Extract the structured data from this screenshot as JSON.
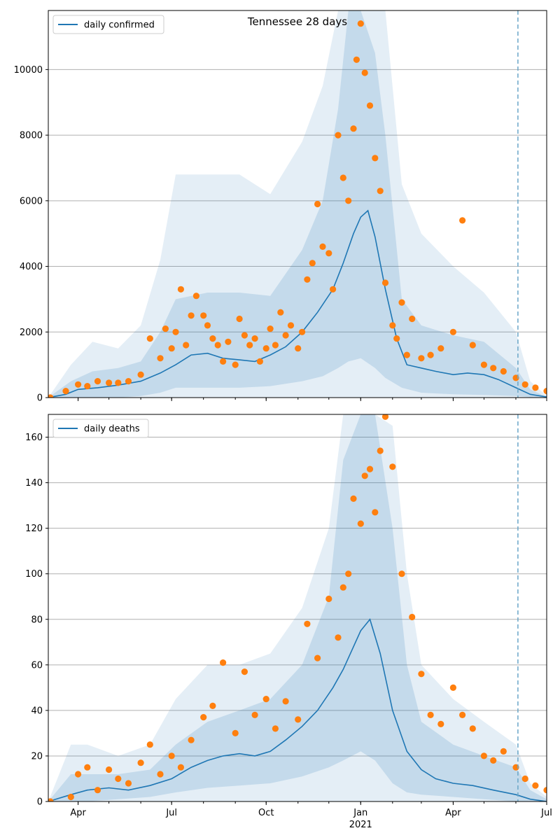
{
  "chart_data": [
    {
      "type": "line",
      "title": "Tennessee 28 days",
      "xlabel": "",
      "ylabel": "",
      "ylim": [
        0,
        11800
      ],
      "x_ticks": [
        "Apr",
        "Jul",
        "Oct",
        "Jan",
        "Apr",
        "Jul"
      ],
      "x_tick_dates": [
        "2020-04-01",
        "2020-07-01",
        "2020-10-01",
        "2021-01-01",
        "2021-04-01",
        "2021-07-01"
      ],
      "x_sub_label": "2021",
      "y_ticks": [
        0,
        2000,
        4000,
        6000,
        8000,
        10000
      ],
      "xlim": [
        "2020-03-03",
        "2021-07-01"
      ],
      "forecast_start": "2021-06-03",
      "grid": "horizontal",
      "legend": "upper-left",
      "colors": {
        "line": "#1f77b4",
        "points": "#ff7f0e",
        "band": "#1f77b4",
        "forecast_line": "#6aa6c8"
      },
      "series": [
        {
          "name": "daily confirmed",
          "kind": "line",
          "x": [
            "2020-03-03",
            "2020-03-20",
            "2020-04-01",
            "2020-04-20",
            "2020-05-10",
            "2020-06-01",
            "2020-06-20",
            "2020-07-05",
            "2020-07-20",
            "2020-08-05",
            "2020-08-20",
            "2020-09-05",
            "2020-09-20",
            "2020-10-05",
            "2020-10-20",
            "2020-11-05",
            "2020-11-20",
            "2020-12-05",
            "2020-12-15",
            "2020-12-25",
            "2021-01-01",
            "2021-01-08",
            "2021-01-15",
            "2021-01-25",
            "2021-02-05",
            "2021-02-15",
            "2021-03-01",
            "2021-03-15",
            "2021-04-01",
            "2021-04-15",
            "2021-05-01",
            "2021-05-15",
            "2021-06-01",
            "2021-06-15",
            "2021-07-01"
          ],
          "y": [
            0,
            100,
            250,
            300,
            380,
            500,
            750,
            1000,
            1300,
            1350,
            1200,
            1150,
            1100,
            1300,
            1550,
            2000,
            2600,
            3300,
            4100,
            5000,
            5500,
            5700,
            4900,
            3300,
            1800,
            1000,
            900,
            800,
            700,
            750,
            700,
            550,
            300,
            100,
            20
          ]
        },
        {
          "name": "uncertainty band (outer)",
          "kind": "band",
          "x": [
            "2020-03-03",
            "2020-03-25",
            "2020-04-15",
            "2020-05-10",
            "2020-06-01",
            "2020-06-20",
            "2020-07-05",
            "2020-08-05",
            "2020-09-05",
            "2020-10-05",
            "2020-11-05",
            "2020-11-25",
            "2020-12-10",
            "2020-12-20",
            "2021-01-01",
            "2021-01-15",
            "2021-01-25",
            "2021-02-10",
            "2021-03-01",
            "2021-04-01",
            "2021-05-01",
            "2021-06-01",
            "2021-06-15",
            "2021-07-01"
          ],
          "low": [
            0,
            0,
            0,
            0,
            0,
            0,
            0,
            0,
            0,
            0,
            0,
            0,
            0,
            0,
            0,
            0,
            0,
            0,
            0,
            0,
            0,
            0,
            0,
            0
          ],
          "high": [
            0,
            1000,
            1700,
            1500,
            2200,
            4200,
            6800,
            6800,
            6800,
            6200,
            7800,
            9500,
            11800,
            11800,
            11800,
            11800,
            11800,
            6500,
            5000,
            4000,
            3200,
            2000,
            500,
            50
          ]
        },
        {
          "name": "uncertainty band (inner)",
          "kind": "band",
          "x": [
            "2020-03-03",
            "2020-03-25",
            "2020-04-15",
            "2020-05-10",
            "2020-06-01",
            "2020-06-20",
            "2020-07-05",
            "2020-08-05",
            "2020-09-05",
            "2020-10-05",
            "2020-11-05",
            "2020-11-25",
            "2020-12-10",
            "2020-12-20",
            "2021-01-01",
            "2021-01-15",
            "2021-01-25",
            "2021-02-10",
            "2021-03-01",
            "2021-04-01",
            "2021-05-01",
            "2021-06-01",
            "2021-06-15",
            "2021-07-01"
          ],
          "low": [
            0,
            0,
            0,
            0,
            50,
            150,
            300,
            300,
            300,
            350,
            500,
            650,
            900,
            1100,
            1200,
            900,
            600,
            300,
            150,
            100,
            80,
            50,
            10,
            0
          ],
          "high": [
            0,
            500,
            800,
            900,
            1100,
            2000,
            3000,
            3200,
            3200,
            3100,
            4500,
            6000,
            8800,
            11800,
            11800,
            10500,
            8000,
            3000,
            2200,
            1900,
            1700,
            900,
            250,
            20
          ]
        },
        {
          "name": "observed",
          "kind": "scatter",
          "x": [
            "2020-03-05",
            "2020-03-20",
            "2020-04-01",
            "2020-04-10",
            "2020-04-20",
            "2020-05-01",
            "2020-05-10",
            "2020-05-20",
            "2020-06-01",
            "2020-06-10",
            "2020-06-20",
            "2020-06-25",
            "2020-07-01",
            "2020-07-05",
            "2020-07-10",
            "2020-07-15",
            "2020-07-20",
            "2020-07-25",
            "2020-08-01",
            "2020-08-05",
            "2020-08-10",
            "2020-08-15",
            "2020-08-20",
            "2020-08-25",
            "2020-09-01",
            "2020-09-05",
            "2020-09-10",
            "2020-09-15",
            "2020-09-20",
            "2020-09-25",
            "2020-10-01",
            "2020-10-05",
            "2020-10-10",
            "2020-10-15",
            "2020-10-20",
            "2020-10-25",
            "2020-11-01",
            "2020-11-05",
            "2020-11-10",
            "2020-11-15",
            "2020-11-20",
            "2020-11-25",
            "2020-12-01",
            "2020-12-05",
            "2020-12-10",
            "2020-12-15",
            "2020-12-20",
            "2020-12-25",
            "2020-12-28",
            "2021-01-01",
            "2021-01-05",
            "2021-01-10",
            "2021-01-15",
            "2021-01-20",
            "2021-01-25",
            "2021-02-01",
            "2021-02-05",
            "2021-02-10",
            "2021-02-15",
            "2021-02-20",
            "2021-03-01",
            "2021-03-10",
            "2021-03-20",
            "2021-04-01",
            "2021-04-10",
            "2021-04-20",
            "2021-05-01",
            "2021-05-10",
            "2021-05-20",
            "2021-06-01",
            "2021-06-10",
            "2021-06-20",
            "2021-07-01"
          ],
          "y": [
            0,
            200,
            400,
            350,
            500,
            450,
            450,
            500,
            700,
            1800,
            1200,
            2100,
            1500,
            2000,
            3300,
            1600,
            2500,
            3100,
            2500,
            2200,
            1800,
            1600,
            1100,
            1700,
            1000,
            2400,
            1900,
            1600,
            1800,
            1100,
            1500,
            2100,
            1600,
            2600,
            1900,
            2200,
            1500,
            2000,
            3600,
            4100,
            5900,
            4600,
            4400,
            3300,
            8000,
            6700,
            6000,
            8200,
            10300,
            11400,
            9900,
            8900,
            7300,
            6300,
            3500,
            2200,
            1800,
            2900,
            1300,
            2400,
            1200,
            1300,
            1500,
            2000,
            5400,
            1600,
            1000,
            900,
            800,
            600,
            400,
            300,
            200
          ]
        }
      ]
    },
    {
      "type": "line",
      "title": "",
      "xlabel": "",
      "ylabel": "",
      "ylim": [
        0,
        170
      ],
      "x_ticks": [
        "Apr",
        "Jul",
        "Oct",
        "Jan",
        "Apr",
        "Jul"
      ],
      "x_tick_dates": [
        "2020-04-01",
        "2020-07-01",
        "2020-10-01",
        "2021-01-01",
        "2021-04-01",
        "2021-07-01"
      ],
      "x_sub_label": "2021",
      "y_ticks": [
        0,
        20,
        40,
        60,
        80,
        100,
        120,
        140,
        160
      ],
      "xlim": [
        "2020-03-03",
        "2021-07-01"
      ],
      "forecast_start": "2021-06-03",
      "grid": "horizontal",
      "legend": "upper-left",
      "colors": {
        "line": "#1f77b4",
        "points": "#ff7f0e",
        "band": "#1f77b4",
        "forecast_line": "#6aa6c8"
      },
      "series": [
        {
          "name": "daily deaths",
          "kind": "line",
          "x": [
            "2020-03-03",
            "2020-03-25",
            "2020-04-10",
            "2020-05-01",
            "2020-05-20",
            "2020-06-10",
            "2020-07-01",
            "2020-07-20",
            "2020-08-05",
            "2020-08-20",
            "2020-09-05",
            "2020-09-20",
            "2020-10-05",
            "2020-10-20",
            "2020-11-05",
            "2020-11-20",
            "2020-12-05",
            "2020-12-15",
            "2020-12-25",
            "2021-01-01",
            "2021-01-10",
            "2021-01-20",
            "2021-02-01",
            "2021-02-15",
            "2021-03-01",
            "2021-03-15",
            "2021-04-01",
            "2021-04-20",
            "2021-05-10",
            "2021-06-01",
            "2021-06-15",
            "2021-07-01"
          ],
          "y": [
            0,
            3,
            5,
            6,
            5,
            7,
            10,
            15,
            18,
            20,
            21,
            20,
            22,
            27,
            33,
            40,
            50,
            58,
            68,
            75,
            80,
            65,
            40,
            22,
            14,
            10,
            8,
            7,
            5,
            3,
            1,
            0
          ]
        },
        {
          "name": "uncertainty band (outer)",
          "kind": "band",
          "x": [
            "2020-03-03",
            "2020-03-25",
            "2020-04-10",
            "2020-05-10",
            "2020-06-10",
            "2020-07-05",
            "2020-08-05",
            "2020-09-05",
            "2020-10-05",
            "2020-11-05",
            "2020-12-01",
            "2020-12-15",
            "2021-01-01",
            "2021-01-15",
            "2021-02-01",
            "2021-02-15",
            "2021-03-01",
            "2021-04-01",
            "2021-05-01",
            "2021-06-01",
            "2021-06-15",
            "2021-07-01"
          ],
          "low": [
            0,
            0,
            0,
            0,
            0,
            0,
            0,
            0,
            0,
            0,
            0,
            0,
            0,
            0,
            0,
            0,
            0,
            0,
            0,
            0,
            0,
            0
          ],
          "high": [
            0,
            25,
            25,
            20,
            25,
            45,
            60,
            60,
            65,
            85,
            120,
            170,
            170,
            170,
            165,
            100,
            60,
            45,
            35,
            25,
            8,
            2
          ]
        },
        {
          "name": "uncertainty band (inner)",
          "kind": "band",
          "x": [
            "2020-03-03",
            "2020-03-25",
            "2020-04-10",
            "2020-05-10",
            "2020-06-10",
            "2020-07-05",
            "2020-08-05",
            "2020-09-05",
            "2020-10-05",
            "2020-11-05",
            "2020-12-01",
            "2020-12-15",
            "2021-01-01",
            "2021-01-15",
            "2021-02-01",
            "2021-02-15",
            "2021-03-01",
            "2021-04-01",
            "2021-05-01",
            "2021-06-01",
            "2021-06-15",
            "2021-07-01"
          ],
          "low": [
            0,
            0,
            0,
            1,
            2,
            4,
            6,
            7,
            8,
            11,
            15,
            18,
            22,
            18,
            8,
            4,
            3,
            2,
            1,
            0,
            0,
            0
          ],
          "high": [
            0,
            12,
            12,
            12,
            14,
            25,
            35,
            40,
            45,
            60,
            90,
            150,
            170,
            170,
            120,
            60,
            35,
            25,
            20,
            15,
            5,
            1
          ]
        },
        {
          "name": "observed",
          "kind": "scatter",
          "x": [
            "2020-03-05",
            "2020-03-25",
            "2020-04-01",
            "2020-04-10",
            "2020-04-20",
            "2020-05-01",
            "2020-05-10",
            "2020-05-20",
            "2020-06-01",
            "2020-06-10",
            "2020-06-20",
            "2020-07-01",
            "2020-07-10",
            "2020-07-20",
            "2020-08-01",
            "2020-08-10",
            "2020-08-20",
            "2020-09-01",
            "2020-09-10",
            "2020-09-20",
            "2020-10-01",
            "2020-10-10",
            "2020-10-20",
            "2020-11-01",
            "2020-11-10",
            "2020-11-20",
            "2020-12-01",
            "2020-12-10",
            "2020-12-15",
            "2020-12-20",
            "2020-12-25",
            "2021-01-01",
            "2021-01-05",
            "2021-01-10",
            "2021-01-15",
            "2021-01-20",
            "2021-01-25",
            "2021-02-01",
            "2021-02-10",
            "2021-02-20",
            "2021-03-01",
            "2021-03-10",
            "2021-03-20",
            "2021-04-01",
            "2021-04-10",
            "2021-04-20",
            "2021-05-01",
            "2021-05-10",
            "2021-05-20",
            "2021-06-01",
            "2021-06-10",
            "2021-06-20",
            "2021-07-01"
          ],
          "y": [
            0,
            2,
            12,
            15,
            5,
            14,
            10,
            8,
            17,
            25,
            12,
            20,
            15,
            27,
            37,
            42,
            61,
            30,
            57,
            38,
            45,
            32,
            44,
            36,
            78,
            63,
            89,
            72,
            94,
            100,
            133,
            122,
            143,
            146,
            127,
            154,
            169,
            147,
            100,
            81,
            56,
            38,
            34,
            50,
            38,
            32,
            20,
            18,
            22,
            15,
            10,
            7,
            5
          ]
        }
      ]
    }
  ]
}
